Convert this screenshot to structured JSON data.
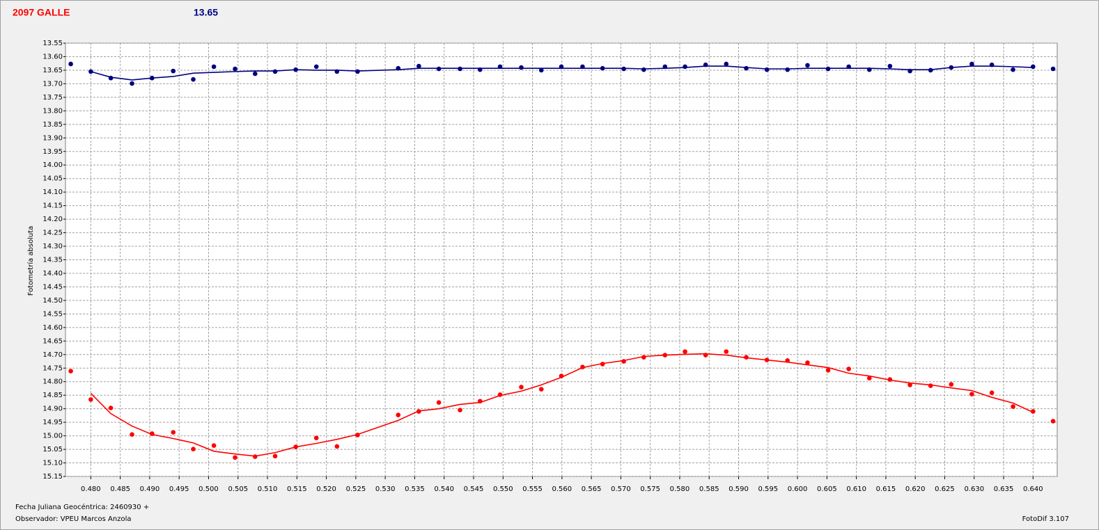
{
  "header": {
    "object": "2097 GALLE",
    "comparison": "13.65"
  },
  "chart_data": {
    "type": "scatter",
    "y_label": "Fotometría absoluta",
    "x": [
      0.4766,
      0.48,
      0.4834,
      0.487,
      0.4904,
      0.494,
      0.4974,
      0.5009,
      0.5045,
      0.5079,
      0.5113,
      0.5148,
      0.5183,
      0.5218,
      0.5253,
      0.5322,
      0.5357,
      0.5391,
      0.5427,
      0.5461,
      0.5495,
      0.5531,
      0.5565,
      0.5599,
      0.5635,
      0.5669,
      0.5705,
      0.5739,
      0.5775,
      0.5809,
      0.5844,
      0.5879,
      0.5913,
      0.5948,
      0.5983,
      0.6017,
      0.6052,
      0.6087,
      0.6122,
      0.6157,
      0.6191,
      0.6226,
      0.6261,
      0.6296,
      0.633,
      0.6366,
      0.64,
      0.6434
    ],
    "series": [
      {
        "color": "#000080",
        "mode": "markers",
        "values": [
          13.627,
          13.655,
          13.679,
          13.699,
          13.679,
          13.653,
          13.684,
          13.637,
          13.645,
          13.663,
          13.655,
          13.648,
          13.637,
          13.655,
          13.655,
          13.643,
          13.635,
          13.645,
          13.645,
          13.648,
          13.637,
          13.64,
          13.65,
          13.637,
          13.637,
          13.643,
          13.645,
          13.648,
          13.637,
          13.637,
          13.63,
          13.627,
          13.643,
          13.648,
          13.648,
          13.632,
          13.645,
          13.637,
          13.648,
          13.635,
          13.653,
          13.65,
          13.64,
          13.627,
          13.63,
          13.648,
          13.637,
          13.645
        ]
      },
      {
        "color": "#000080",
        "mode": "line",
        "values": [
          null,
          13.655,
          13.676,
          13.686,
          13.679,
          13.673,
          13.661,
          13.658,
          13.655,
          13.653,
          13.653,
          13.648,
          13.65,
          13.65,
          13.653,
          13.648,
          13.643,
          13.643,
          13.643,
          13.643,
          13.643,
          13.643,
          13.643,
          13.643,
          13.643,
          13.643,
          13.643,
          13.645,
          13.643,
          13.64,
          13.635,
          13.635,
          13.64,
          13.645,
          13.645,
          13.643,
          13.643,
          13.643,
          13.643,
          13.645,
          13.648,
          13.648,
          13.64,
          13.635,
          13.635,
          13.637,
          13.64,
          null
        ]
      },
      {
        "color": "#ff0000",
        "mode": "markers",
        "values": [
          14.761,
          14.866,
          14.897,
          14.995,
          14.992,
          14.987,
          15.049,
          15.036,
          15.08,
          15.077,
          15.075,
          15.041,
          15.008,
          15.039,
          14.997,
          14.923,
          14.91,
          14.877,
          14.905,
          14.872,
          14.848,
          14.82,
          14.828,
          14.779,
          14.746,
          14.735,
          14.725,
          14.71,
          14.702,
          14.689,
          14.702,
          14.689,
          14.71,
          14.72,
          14.722,
          14.73,
          14.758,
          14.753,
          14.787,
          14.792,
          14.812,
          14.815,
          14.81,
          14.846,
          14.841,
          14.892,
          14.91,
          14.946
        ]
      },
      {
        "color": "#ff0000",
        "mode": "line",
        "values": [
          null,
          14.843,
          14.918,
          14.964,
          14.995,
          15.01,
          15.026,
          15.057,
          15.067,
          15.075,
          15.062,
          15.041,
          15.028,
          15.013,
          14.995,
          14.943,
          14.908,
          14.9,
          14.884,
          14.877,
          14.851,
          14.835,
          14.812,
          14.784,
          14.748,
          14.733,
          14.722,
          14.707,
          14.702,
          14.699,
          14.697,
          14.702,
          14.712,
          14.72,
          14.728,
          14.738,
          14.748,
          14.769,
          14.779,
          14.794,
          14.805,
          14.812,
          14.823,
          14.833,
          14.858,
          14.879,
          14.913,
          null
        ]
      }
    ],
    "xlim": [
      0.4757,
      0.6441
    ],
    "ylim": [
      15.15,
      13.55
    ],
    "grid": true,
    "xticks": [
      {
        "value": 0.48,
        "label": "0.480"
      },
      0.485,
      {
        "value": 0.49,
        "label": "0.490"
      },
      0.495,
      {
        "value": 0.5,
        "label": "0.500"
      },
      0.505,
      {
        "value": 0.51,
        "label": "0.510"
      },
      0.515,
      {
        "value": 0.52,
        "label": "0.520"
      },
      0.525,
      {
        "value": 0.53,
        "label": "0.530"
      },
      0.535,
      {
        "value": 0.54,
        "label": "0.540"
      },
      0.545,
      {
        "value": 0.55,
        "label": "0.550"
      },
      0.555,
      {
        "value": 0.56,
        "label": "0.560"
      },
      0.565,
      {
        "value": 0.57,
        "label": "0.570"
      },
      0.575,
      {
        "value": 0.58,
        "label": "0.580"
      },
      0.585,
      {
        "value": 0.59,
        "label": "0.590"
      },
      0.595,
      {
        "value": 0.6,
        "label": "0.600"
      },
      0.605,
      {
        "value": 0.61,
        "label": "0.610"
      },
      0.615,
      {
        "value": 0.62,
        "label": "0.620"
      },
      0.625,
      {
        "value": 0.63,
        "label": "0.630"
      },
      0.635,
      {
        "value": 0.64,
        "label": "0.640"
      }
    ],
    "yticks": [
      13.55,
      {
        "value": 13.6,
        "label": "13.60"
      },
      13.65,
      {
        "value": 13.7,
        "label": "13.70"
      },
      13.75,
      {
        "value": 13.8,
        "label": "13.80"
      },
      13.85,
      {
        "value": 13.9,
        "label": "13.90"
      },
      13.95,
      {
        "value": 14,
        "label": "14.00"
      },
      14.05,
      {
        "value": 14.1,
        "label": "14.10"
      },
      14.15,
      {
        "value": 14.2,
        "label": "14.20"
      },
      14.25,
      {
        "value": 14.3,
        "label": "14.30"
      },
      14.35,
      {
        "value": 14.4,
        "label": "14.40"
      },
      14.45,
      {
        "value": 14.5,
        "label": "14.50"
      },
      14.55,
      {
        "value": 14.6,
        "label": "14.60"
      },
      14.65,
      {
        "value": 14.7,
        "label": "14.70"
      },
      14.75,
      {
        "value": 14.8,
        "label": "14.80"
      },
      14.85,
      {
        "value": 14.9,
        "label": "14.90"
      },
      14.95,
      {
        "value": 15,
        "label": "15.00"
      },
      15.05,
      {
        "value": 15.1,
        "label": "15.10"
      },
      15.15
    ]
  },
  "footer": {
    "date_label": "Fecha Juliana Geocéntrica: 2460930 +",
    "observer": "Observador: VPEU Marcos Anzola",
    "software": "FotoDif 3.107"
  }
}
